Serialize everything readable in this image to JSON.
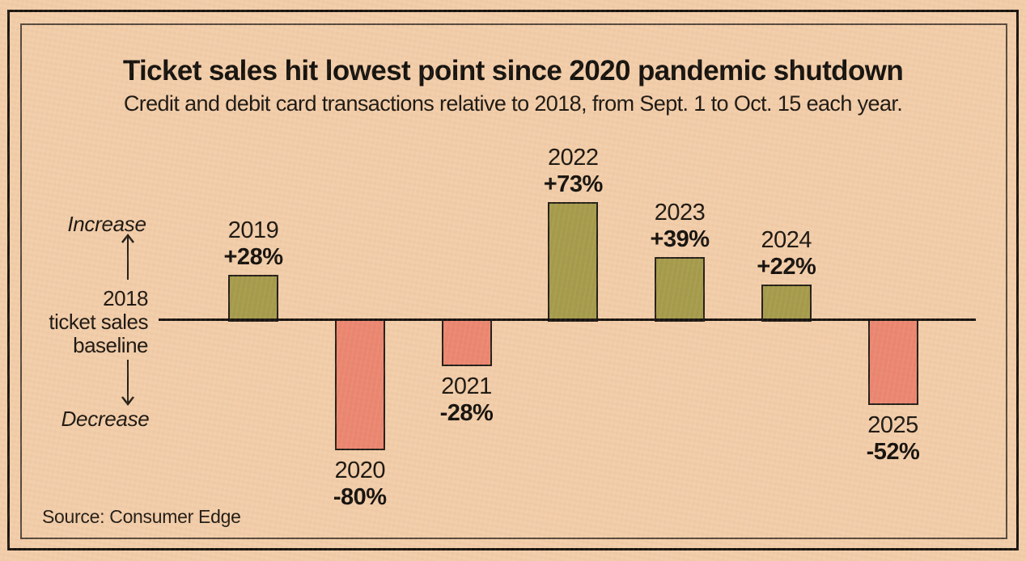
{
  "header": {
    "title": "Ticket sales hit lowest point since 2020 pandemic shutdown",
    "subtitle": "Credit and debit card transactions relative to 2018, from Sept. 1 to Oct. 15 each year."
  },
  "axis_annotations": {
    "increase": "Increase",
    "decrease": "Decrease",
    "baseline_line1": "2018",
    "baseline_line2": "ticket sales",
    "baseline_line3": "baseline"
  },
  "source": "Source: Consumer Edge",
  "chart_data": {
    "type": "bar",
    "title": "Ticket sales hit lowest point since 2020 pandemic shutdown",
    "subtitle": "Credit and debit card transactions relative to 2018, from Sept. 1 to Oct. 15 each year.",
    "categories": [
      "2019",
      "2020",
      "2021",
      "2022",
      "2023",
      "2024",
      "2025"
    ],
    "values": [
      28,
      -80,
      -28,
      73,
      39,
      22,
      -52
    ],
    "value_labels": [
      "+28%",
      "-80%",
      "-28%",
      "+73%",
      "+39%",
      "+22%",
      "-52%"
    ],
    "value_format": "percent change relative to 2018 baseline",
    "baseline_label": "2018 ticket sales baseline",
    "ylim": [
      -90,
      80
    ],
    "grid": false,
    "legend": "none",
    "colors": {
      "positive": "#a59b4b",
      "negative": "#eb8670",
      "outline": "#241f18",
      "baseline_axis": "#171310",
      "background": "#f2cda9",
      "text": "#171310"
    }
  }
}
